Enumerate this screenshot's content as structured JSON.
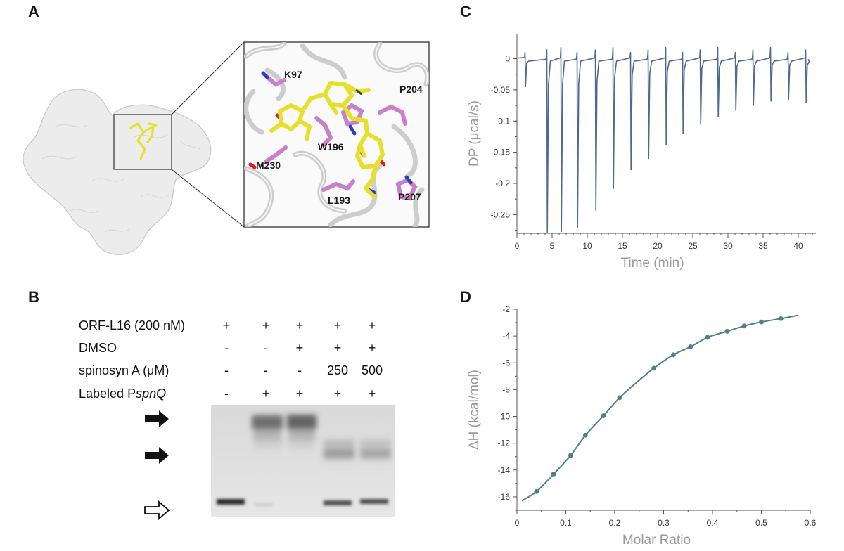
{
  "panels": {
    "a": {
      "label": "A",
      "residues": [
        "K97",
        "P204",
        "W196",
        "M230",
        "L193",
        "P207"
      ],
      "colors": {
        "ligand": "#e6e02a",
        "residue": "#c97fc9",
        "nitrogen": "#2a3fc0",
        "oxygen": "#d62020",
        "protein": "#dcdcdc"
      }
    },
    "b": {
      "label": "B",
      "rows": [
        {
          "label": "ORF-L16 (200 nM)",
          "label_italic": "",
          "values": [
            "+",
            "+",
            "+",
            "+",
            "+"
          ]
        },
        {
          "label": "DMSO",
          "label_italic": "",
          "values": [
            "-",
            "-",
            "+",
            "+",
            "+"
          ]
        },
        {
          "label": "spinosyn A (μM)",
          "label_italic": "",
          "values": [
            "-",
            "-",
            "-",
            "250",
            "500"
          ]
        },
        {
          "label": "Labeled P",
          "label_italic": "spnQ",
          "values": [
            "-",
            "+",
            "+",
            "+",
            "+"
          ]
        }
      ],
      "arrows": [
        "filled",
        "filled",
        "open"
      ]
    },
    "c": {
      "label": "C"
    },
    "d": {
      "label": "D"
    }
  },
  "chart_data": [
    {
      "type": "line",
      "panel": "C",
      "title": "",
      "xlabel": "Time (min)",
      "ylabel": "DP (μcal/s)",
      "xlim": [
        0,
        42.5
      ],
      "ylim": [
        -0.28,
        0.04
      ],
      "xticks": [
        0,
        5,
        10,
        15,
        20,
        25,
        30,
        35,
        40
      ],
      "yticks": [
        0,
        -0.05,
        -0.1,
        -0.15,
        -0.2,
        -0.25
      ],
      "ytick_labels": [
        "0",
        "-0.05",
        "-0.1",
        "-0.15",
        "-0.2",
        "-0.25"
      ],
      "series_color": "#4e6a8c",
      "injections": [
        {
          "t": 1.2,
          "peak": -0.045
        },
        {
          "t": 4.3,
          "peak": -0.278
        },
        {
          "t": 6.3,
          "peak": -0.277
        },
        {
          "t": 8.6,
          "peak": -0.27
        },
        {
          "t": 11.2,
          "peak": -0.243
        },
        {
          "t": 13.7,
          "peak": -0.208
        },
        {
          "t": 16.2,
          "peak": -0.178
        },
        {
          "t": 18.7,
          "peak": -0.16
        },
        {
          "t": 21.2,
          "peak": -0.138
        },
        {
          "t": 23.6,
          "peak": -0.12
        },
        {
          "t": 26.1,
          "peak": -0.105
        },
        {
          "t": 28.6,
          "peak": -0.093
        },
        {
          "t": 31.1,
          "peak": -0.083
        },
        {
          "t": 33.6,
          "peak": -0.075
        },
        {
          "t": 36.1,
          "peak": -0.068
        },
        {
          "t": 38.6,
          "peak": -0.065
        },
        {
          "t": 41.1,
          "peak": -0.07
        }
      ]
    },
    {
      "type": "scatter",
      "panel": "D",
      "title": "",
      "xlabel": "Molar Ratio",
      "ylabel": "ΔH (kcal/mol)",
      "xlim": [
        0,
        0.6
      ],
      "ylim": [
        -17,
        -2
      ],
      "xticks": [
        0,
        0.1,
        0.2,
        0.3,
        0.4,
        0.5,
        0.6
      ],
      "xtick_labels": [
        "0",
        "0.1",
        "0.2",
        "0.3",
        "0.4",
        "0.5",
        "0.6"
      ],
      "yticks": [
        -2,
        -4,
        -6,
        -8,
        -10,
        -12,
        -14,
        -16
      ],
      "line_color": "#4f7f8c",
      "points": {
        "x": [
          0.04,
          0.075,
          0.11,
          0.14,
          0.177,
          0.21,
          0.28,
          0.32,
          0.355,
          0.39,
          0.43,
          0.465,
          0.5,
          0.54
        ],
        "y": [
          -15.6,
          -14.3,
          -12.9,
          -11.4,
          -9.95,
          -8.6,
          -6.4,
          -5.4,
          -4.8,
          -4.1,
          -3.65,
          -3.25,
          -2.95,
          -2.7
        ]
      },
      "fit": {
        "x": [
          0.01,
          0.04,
          0.075,
          0.11,
          0.14,
          0.177,
          0.21,
          0.25,
          0.28,
          0.32,
          0.355,
          0.39,
          0.43,
          0.465,
          0.5,
          0.54,
          0.575
        ],
        "y": [
          -16.3,
          -15.6,
          -14.3,
          -12.9,
          -11.4,
          -9.95,
          -8.6,
          -7.3,
          -6.4,
          -5.4,
          -4.8,
          -4.1,
          -3.65,
          -3.25,
          -2.95,
          -2.7,
          -2.45
        ]
      }
    }
  ]
}
